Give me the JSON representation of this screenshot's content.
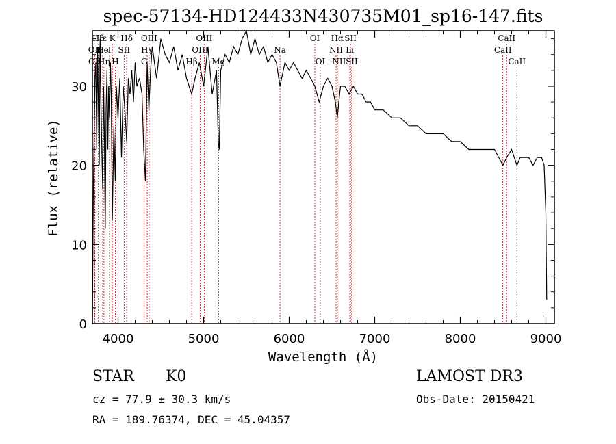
{
  "chart_data": {
    "type": "line",
    "title": "spec-57134-HD124433N430735M01_sp16-147.fits",
    "xlabel": "Wavelength (Å)",
    "ylabel": "Flux (relative)",
    "xlim": [
      3700,
      9100
    ],
    "ylim": [
      0,
      37
    ],
    "xticks": [
      4000,
      5000,
      6000,
      7000,
      8000,
      9000
    ],
    "yticks": [
      0,
      10,
      20,
      30
    ],
    "series": [
      {
        "name": "spectrum",
        "x": [
          3700,
          3710,
          3720,
          3730,
          3740,
          3750,
          3760,
          3770,
          3780,
          3790,
          3800,
          3810,
          3820,
          3830,
          3840,
          3850,
          3860,
          3870,
          3880,
          3890,
          3900,
          3910,
          3920,
          3933,
          3950,
          3968,
          3980,
          4000,
          4020,
          4040,
          4060,
          4080,
          4101,
          4120,
          4140,
          4160,
          4180,
          4200,
          4220,
          4250,
          4280,
          4300,
          4320,
          4340,
          4360,
          4380,
          4400,
          4450,
          4500,
          4550,
          4600,
          4650,
          4700,
          4750,
          4800,
          4861,
          4900,
          4950,
          5000,
          5050,
          5100,
          5150,
          5172,
          5183,
          5200,
          5250,
          5300,
          5350,
          5400,
          5450,
          5500,
          5550,
          5600,
          5650,
          5700,
          5750,
          5800,
          5850,
          5893,
          5950,
          6000,
          6050,
          6100,
          6150,
          6200,
          6250,
          6300,
          6350,
          6400,
          6450,
          6500,
          6520,
          6540,
          6563,
          6580,
          6600,
          6650,
          6700,
          6750,
          6800,
          6850,
          6900,
          6950,
          7000,
          7100,
          7200,
          7300,
          7400,
          7500,
          7600,
          7700,
          7800,
          7900,
          8000,
          8100,
          8200,
          8300,
          8400,
          8498,
          8542,
          8600,
          8662,
          8700,
          8750,
          8800,
          8850,
          8900,
          8950,
          8980,
          9000,
          9010
        ],
        "values": [
          0,
          16,
          24,
          31,
          33,
          22,
          35,
          27,
          20,
          36,
          28,
          22,
          17,
          30,
          24,
          12,
          27,
          32,
          22,
          30,
          26,
          33,
          29,
          13,
          25,
          18,
          30,
          26,
          31,
          21,
          30,
          27,
          23,
          31,
          29,
          32,
          28,
          33,
          30,
          31,
          29,
          22,
          18,
          33,
          27,
          32,
          35,
          31,
          36,
          34,
          33,
          35,
          32,
          34,
          31,
          29,
          31,
          33,
          30,
          35,
          29,
          32,
          23,
          22,
          32,
          34,
          33,
          35,
          34,
          36,
          37,
          34,
          36,
          34,
          35,
          33,
          34,
          33,
          30,
          33,
          32,
          33,
          32,
          31,
          32,
          31,
          30,
          28,
          30,
          31,
          30,
          29,
          28,
          26,
          28,
          30,
          30,
          29,
          30,
          29,
          29,
          28,
          28,
          27,
          27,
          26,
          26,
          25,
          25,
          24,
          24,
          24,
          23,
          23,
          22,
          22,
          22,
          22,
          20,
          21,
          22,
          20,
          21,
          21,
          21,
          20,
          21,
          21,
          20,
          14,
          3
        ]
      }
    ],
    "line_markers": [
      {
        "label": "Hβ",
        "wavelength": 3770,
        "row": 1
      },
      {
        "label": "OII",
        "wavelength": 3727,
        "row": 2
      },
      {
        "label": "OII",
        "wavelength": 3729,
        "row": 3
      },
      {
        "label": "Hε",
        "wavelength": 3800,
        "row": 1
      },
      {
        "label": "He",
        "wavelength": 3820,
        "row": 2
      },
      {
        "label": "Hη",
        "wavelength": 3835,
        "row": 3
      },
      {
        "label": "K",
        "wavelength": 3933,
        "row": 1
      },
      {
        "label": "I",
        "wavelength": 3900,
        "row": 2
      },
      {
        "label": "H",
        "wavelength": 3968,
        "row": 3
      },
      {
        "label": "Hδ",
        "wavelength": 4101,
        "row": 1
      },
      {
        "label": "SII",
        "wavelength": 4070,
        "row": 2
      },
      {
        "label": "OIII",
        "wavelength": 4363,
        "row": 1
      },
      {
        "label": "Hγ",
        "wavelength": 4340,
        "row": 2
      },
      {
        "label": "G",
        "wavelength": 4305,
        "row": 3
      },
      {
        "label": "OIII",
        "wavelength": 5007,
        "row": 1
      },
      {
        "label": "OIII",
        "wavelength": 4959,
        "row": 2
      },
      {
        "label": "Hβ",
        "wavelength": 4861,
        "row": 3
      },
      {
        "label": "Mg",
        "wavelength": 5175,
        "row": 3
      },
      {
        "label": "Na",
        "wavelength": 5893,
        "row": 2
      },
      {
        "label": "OI",
        "wavelength": 6300,
        "row": 1
      },
      {
        "label": "OI",
        "wavelength": 6363,
        "row": 3
      },
      {
        "label": "Hα",
        "wavelength": 6563,
        "row": 1
      },
      {
        "label": "NII",
        "wavelength": 6548,
        "row": 2
      },
      {
        "label": "NII",
        "wavelength": 6583,
        "row": 3
      },
      {
        "label": "SII",
        "wavelength": 6717,
        "row": 1
      },
      {
        "label": "Li",
        "wavelength": 6708,
        "row": 2
      },
      {
        "label": "SII",
        "wavelength": 6731,
        "row": 3
      },
      {
        "label": "CaII",
        "wavelength": 8542,
        "row": 1
      },
      {
        "label": "CaII",
        "wavelength": 8498,
        "row": 2
      },
      {
        "label": "CaII",
        "wavelength": 8662,
        "row": 3
      }
    ],
    "colors": {
      "spectrum": "#000000",
      "markers": "#b22222",
      "axes": "#000000"
    }
  },
  "info": {
    "object_class": "STAR",
    "subclass": "K0",
    "survey": "LAMOST DR3",
    "redshift_line": "cz = 77.9 ± 30.3 km/s",
    "obs_date_line": "Obs-Date: 20150421",
    "coords_line": "RA = 189.76374, DEC =  45.04357"
  }
}
